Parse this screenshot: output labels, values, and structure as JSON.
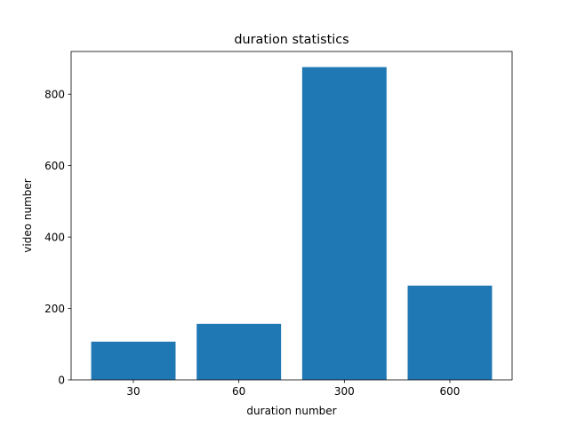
{
  "chart_data": {
    "type": "bar",
    "title": "duration statistics",
    "xlabel": "duration number",
    "ylabel": "video number",
    "categories": [
      "30",
      "60",
      "300",
      "600"
    ],
    "values": [
      107,
      157,
      876,
      264
    ],
    "ylim": [
      0,
      919.8
    ],
    "yticks": [
      0,
      200,
      400,
      600,
      800
    ],
    "grid": false,
    "legend": "none",
    "bar_color": "#1f77b4"
  }
}
